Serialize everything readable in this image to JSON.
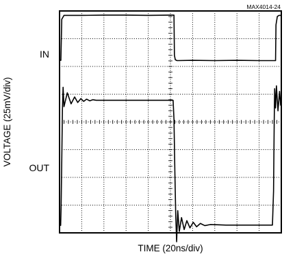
{
  "figure_id": "MAX4014-24",
  "chart_data": {
    "type": "line",
    "title": "",
    "xlabel": "TIME (20ns/div)",
    "ylabel": "VOLTAGE (25mV/div)",
    "x_units": "div",
    "y_units": "div",
    "xlim": [
      0,
      10
    ],
    "ylim": [
      0,
      8
    ],
    "grid": true,
    "trace_labels": [
      "IN",
      "OUT"
    ],
    "series": [
      {
        "name": "IN",
        "x": [
          0.0,
          0.06,
          0.1,
          0.2,
          1.0,
          2.0,
          3.0,
          4.0,
          5.0,
          5.16,
          5.18,
          5.22,
          5.3,
          6.0,
          7.0,
          8.0,
          9.0,
          9.6,
          9.74,
          9.76,
          9.82,
          9.9,
          10.0
        ],
        "y": [
          6.22,
          6.22,
          7.7,
          7.84,
          7.84,
          7.85,
          7.85,
          7.84,
          7.85,
          7.85,
          6.4,
          6.24,
          6.21,
          6.22,
          6.21,
          6.22,
          6.21,
          6.21,
          6.21,
          7.5,
          7.8,
          7.84,
          7.84
        ]
      },
      {
        "name": "OUT",
        "x": [
          0.0,
          0.05,
          0.07,
          0.1,
          0.13,
          0.16,
          0.2,
          0.35,
          0.52,
          0.68,
          0.82,
          0.96,
          1.09,
          1.22,
          1.36,
          1.5,
          1.65,
          2.0,
          3.0,
          4.0,
          5.0,
          5.12,
          5.16,
          5.2,
          5.24,
          5.28,
          5.33,
          5.4,
          5.5,
          5.62,
          5.74,
          5.88,
          6.03,
          6.18,
          6.35,
          6.55,
          6.8,
          7.5,
          8.5,
          9.4,
          9.6,
          9.65,
          9.68,
          9.7,
          9.74,
          9.78,
          9.85,
          9.92,
          9.97,
          10.0
        ],
        "y": [
          0.27,
          0.27,
          0.9,
          2.6,
          4.45,
          5.25,
          4.55,
          5.05,
          4.65,
          4.9,
          4.7,
          4.84,
          4.74,
          4.82,
          4.76,
          4.8,
          4.78,
          4.78,
          4.78,
          4.78,
          4.78,
          4.78,
          4.1,
          2.2,
          0.6,
          -0.32,
          0.8,
          0.05,
          0.55,
          0.12,
          0.44,
          0.18,
          0.38,
          0.22,
          0.34,
          0.26,
          0.3,
          0.28,
          0.28,
          0.28,
          0.28,
          1.5,
          4.0,
          5.2,
          4.5,
          5.3,
          4.4,
          5.1,
          4.6,
          4.9
        ]
      }
    ]
  }
}
